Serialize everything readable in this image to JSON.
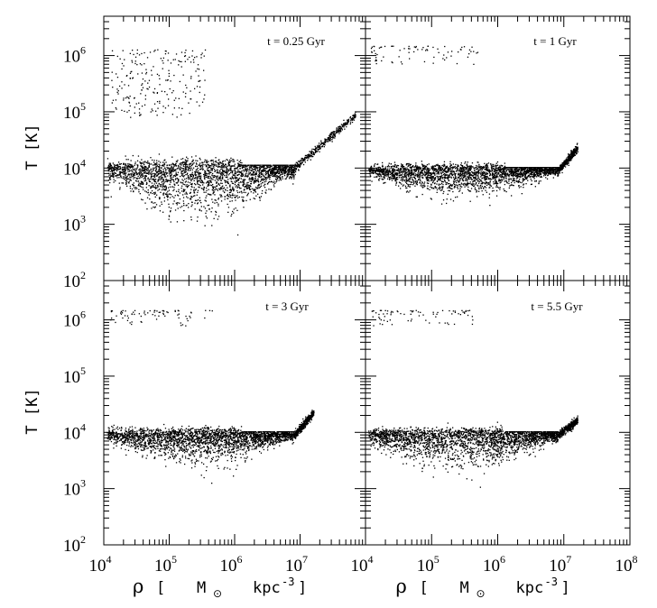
{
  "chart_data": [
    {
      "type": "scatter",
      "panel": "top-left",
      "annotation": "t = 0.25 Gyr",
      "xscale": "log",
      "yscale": "log",
      "xlim": [
        10000,
        100000000
      ],
      "ylim": [
        100,
        5000000
      ],
      "xlabel": "",
      "ylabel": "T [K]",
      "regions": [
        {
          "kind": "hot_halo",
          "x_range": [
            13000,
            350000
          ],
          "y_range": [
            80000,
            1300000
          ],
          "density": 0.6
        },
        {
          "kind": "cold_disk",
          "x_range": [
            11000,
            8000000
          ],
          "y_center": 11000,
          "y_spread_low": 3000,
          "y_spread_high": 14000,
          "density": 1.0
        },
        {
          "kind": "tail",
          "x_range": [
            8000000,
            70000000
          ],
          "y_range": [
            10000,
            90000
          ]
        }
      ]
    },
    {
      "type": "scatter",
      "panel": "top-right",
      "annotation": "t = 1 Gyr",
      "xscale": "log",
      "yscale": "log",
      "xlim": [
        10000,
        100000000
      ],
      "ylim": [
        100,
        5000000
      ],
      "xlabel": "",
      "ylabel": "",
      "regions": [
        {
          "kind": "hot_halo",
          "x_range": [
            12000,
            500000
          ],
          "y_range": [
            700000,
            1500000
          ],
          "density": 0.2
        },
        {
          "kind": "cold_disk",
          "x_range": [
            11000,
            8000000
          ],
          "y_center": 10000,
          "y_spread_low": 5000,
          "y_spread_high": 12000,
          "density": 1.0
        },
        {
          "kind": "tail",
          "x_range": [
            8000000,
            16000000
          ],
          "y_range": [
            9000,
            23000
          ]
        }
      ]
    },
    {
      "type": "scatter",
      "panel": "bottom-left",
      "annotation": "t = 3 Gyr",
      "xscale": "log",
      "yscale": "log",
      "xlim": [
        10000,
        100000000
      ],
      "ylim": [
        100,
        5000000
      ],
      "xlabel": "ρ [ M⊙ kpc⁻³]",
      "ylabel": "T [K]",
      "regions": [
        {
          "kind": "hot_halo",
          "x_range": [
            12000,
            500000
          ],
          "y_range": [
            800000,
            1500000
          ],
          "density": 0.2
        },
        {
          "kind": "cold_disk",
          "x_range": [
            11000,
            8000000
          ],
          "y_center": 10000,
          "y_spread_low": 4500,
          "y_spread_high": 12000,
          "density": 1.0
        },
        {
          "kind": "tail",
          "x_range": [
            8000000,
            16000000
          ],
          "y_range": [
            9000,
            23000
          ]
        }
      ]
    },
    {
      "type": "scatter",
      "panel": "bottom-right",
      "annotation": "t = 5.5 Gyr",
      "xscale": "log",
      "yscale": "log",
      "xlim": [
        10000,
        100000000
      ],
      "ylim": [
        100,
        5000000
      ],
      "xlabel": "ρ [ M⊙ kpc⁻³]",
      "ylabel": "",
      "regions": [
        {
          "kind": "hot_halo",
          "x_range": [
            12000,
            500000
          ],
          "y_range": [
            800000,
            1500000
          ],
          "density": 0.2
        },
        {
          "kind": "cold_disk",
          "x_range": [
            11000,
            8000000
          ],
          "y_center": 10000,
          "y_spread_low": 4000,
          "y_spread_high": 12000,
          "density": 1.0
        },
        {
          "kind": "tail",
          "x_range": [
            8000000,
            16000000
          ],
          "y_range": [
            9000,
            17000
          ]
        }
      ]
    }
  ],
  "axes": {
    "x_tick_labels": [
      {
        "base": "10",
        "exp": "4"
      },
      {
        "base": "10",
        "exp": "5"
      },
      {
        "base": "10",
        "exp": "6"
      },
      {
        "base": "10",
        "exp": "7"
      },
      {
        "base": "10",
        "exp": "8"
      }
    ],
    "y_tick_labels": [
      {
        "base": "10",
        "exp": "2"
      },
      {
        "base": "10",
        "exp": "3"
      },
      {
        "base": "10",
        "exp": "4"
      },
      {
        "base": "10",
        "exp": "5"
      },
      {
        "base": "10",
        "exp": "6"
      }
    ],
    "ylabel": "T [K]",
    "xlabel_rho": "ρ",
    "xlabel_open": "[",
    "xlabel_m": "M",
    "xlabel_odot": "⊙",
    "xlabel_kpc": "kpc",
    "xlabel_exp": "-3",
    "xlabel_close": "]"
  },
  "colors": {
    "points": "#000000",
    "frame": "#000000",
    "background": "#ffffff"
  }
}
